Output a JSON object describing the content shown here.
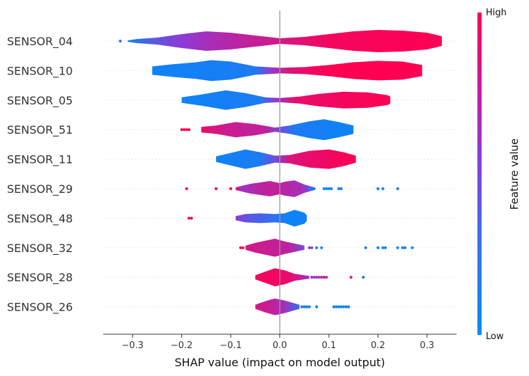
{
  "chart_data": {
    "type": "violin",
    "xlabel": "SHAP value (impact on model output)",
    "xlim": [
      -0.36,
      0.36
    ],
    "x_ticks": [
      -0.3,
      -0.2,
      -0.1,
      0.0,
      0.1,
      0.2,
      0.3
    ],
    "x_tick_labels": [
      "−0.3",
      "−0.2",
      "−0.1",
      "0.0",
      "0.1",
      "0.2",
      "0.3"
    ],
    "colorbar": {
      "title": "Feature value",
      "high_label": "High",
      "low_label": "Low",
      "low_color": "#008bfb",
      "high_color": "#ff0052"
    },
    "features": [
      {
        "name": "SENSOR_04",
        "profile": [
          [
            -0.31,
            1
          ],
          [
            -0.29,
            3
          ],
          [
            -0.25,
            5
          ],
          [
            -0.2,
            10
          ],
          [
            -0.15,
            14
          ],
          [
            -0.1,
            12
          ],
          [
            -0.05,
            8
          ],
          [
            0,
            4
          ],
          [
            0.05,
            6
          ],
          [
            0.1,
            10
          ],
          [
            0.15,
            14
          ],
          [
            0.2,
            16
          ],
          [
            0.25,
            15
          ],
          [
            0.3,
            12
          ],
          [
            0.33,
            7
          ]
        ],
        "color_stops": [
          [
            -0.31,
            0.05
          ],
          [
            -0.25,
            0.35
          ],
          [
            -0.2,
            0.5
          ],
          [
            -0.15,
            0.6
          ],
          [
            -0.1,
            0.68
          ],
          [
            0,
            0.8
          ],
          [
            0.1,
            0.95
          ],
          [
            0.33,
            1
          ]
        ],
        "outliers": [
          [
            -0.325,
            0.0
          ]
        ]
      },
      {
        "name": "SENSOR_10",
        "profile": [
          [
            -0.26,
            6
          ],
          [
            -0.22,
            9
          ],
          [
            -0.17,
            12
          ],
          [
            -0.14,
            15
          ],
          [
            -0.1,
            13
          ],
          [
            -0.05,
            6
          ],
          [
            0,
            4
          ],
          [
            0.05,
            5
          ],
          [
            0.1,
            8
          ],
          [
            0.15,
            12
          ],
          [
            0.2,
            14
          ],
          [
            0.25,
            13
          ],
          [
            0.29,
            8
          ]
        ],
        "color_stops": [
          [
            -0.26,
            0.05
          ],
          [
            -0.05,
            0.1
          ],
          [
            -0.02,
            0.5
          ],
          [
            0.02,
            0.85
          ],
          [
            0.1,
            1
          ],
          [
            0.29,
            1
          ]
        ],
        "outliers": []
      },
      {
        "name": "SENSOR_05",
        "profile": [
          [
            -0.2,
            4
          ],
          [
            -0.16,
            8
          ],
          [
            -0.11,
            14
          ],
          [
            -0.07,
            10
          ],
          [
            -0.03,
            4
          ],
          [
            0,
            3
          ],
          [
            0.04,
            5
          ],
          [
            0.08,
            9
          ],
          [
            0.13,
            12
          ],
          [
            0.18,
            11
          ],
          [
            0.22,
            7
          ],
          [
            0.225,
            5
          ]
        ],
        "color_stops": [
          [
            -0.2,
            0.05
          ],
          [
            -0.04,
            0.1
          ],
          [
            -0.01,
            0.5
          ],
          [
            0.03,
            0.9
          ],
          [
            0.225,
            1
          ]
        ],
        "outliers": []
      },
      {
        "name": "SENSOR_51",
        "profile": [
          [
            -0.16,
            4
          ],
          [
            -0.13,
            6
          ],
          [
            -0.09,
            11
          ],
          [
            -0.05,
            8
          ],
          [
            -0.01,
            3
          ],
          [
            0.02,
            6
          ],
          [
            0.06,
            12
          ],
          [
            0.09,
            15
          ],
          [
            0.12,
            11
          ],
          [
            0.15,
            6
          ]
        ],
        "color_stops": [
          [
            -0.16,
            0.9
          ],
          [
            -0.1,
            0.75
          ],
          [
            -0.03,
            0.72
          ],
          [
            0,
            0.4
          ],
          [
            0.03,
            0.1
          ],
          [
            0.15,
            0.05
          ]
        ],
        "outliers": [
          [
            -0.2,
            1
          ],
          [
            -0.195,
            1
          ],
          [
            -0.19,
            1
          ],
          [
            -0.185,
            1
          ]
        ]
      },
      {
        "name": "SENSOR_11",
        "profile": [
          [
            -0.13,
            4
          ],
          [
            -0.1,
            9
          ],
          [
            -0.07,
            14
          ],
          [
            -0.04,
            10
          ],
          [
            -0.01,
            5
          ],
          [
            0.02,
            6
          ],
          [
            0.06,
            12
          ],
          [
            0.1,
            14
          ],
          [
            0.13,
            10
          ],
          [
            0.155,
            5
          ]
        ],
        "color_stops": [
          [
            -0.13,
            0.05
          ],
          [
            -0.04,
            0.1
          ],
          [
            -0.01,
            0.4
          ],
          [
            0.02,
            0.85
          ],
          [
            0.155,
            1
          ]
        ],
        "outliers": []
      },
      {
        "name": "SENSOR_29",
        "profile": [
          [
            -0.09,
            2
          ],
          [
            -0.06,
            7
          ],
          [
            -0.02,
            11
          ],
          [
            0.0,
            8
          ],
          [
            0.01,
            10
          ],
          [
            0.03,
            12
          ],
          [
            0.05,
            6
          ],
          [
            0.07,
            2
          ]
        ],
        "color_stops": [
          [
            -0.09,
            0.55
          ],
          [
            -0.03,
            0.72
          ],
          [
            0.0,
            0.72
          ],
          [
            0.04,
            0.6
          ],
          [
            0.07,
            0.4
          ]
        ],
        "outliers": [
          [
            -0.19,
            1
          ],
          [
            -0.13,
            1
          ],
          [
            -0.1,
            1
          ],
          [
            -0.085,
            1
          ],
          [
            0.04,
            0.8
          ],
          [
            0.06,
            0.05
          ],
          [
            0.065,
            0.05
          ],
          [
            0.07,
            0.1
          ],
          [
            0.09,
            0.05
          ],
          [
            0.095,
            0.05
          ],
          [
            0.1,
            0.05
          ],
          [
            0.105,
            0.05
          ],
          [
            0.12,
            0.05
          ],
          [
            0.125,
            0.05
          ],
          [
            0.2,
            0.05
          ],
          [
            0.21,
            0.05
          ],
          [
            0.24,
            0.05
          ]
        ]
      },
      {
        "name": "SENSOR_48",
        "profile": [
          [
            -0.09,
            3
          ],
          [
            -0.07,
            6
          ],
          [
            -0.04,
            7
          ],
          [
            -0.01,
            6
          ],
          [
            0.01,
            7
          ],
          [
            0.03,
            12
          ],
          [
            0.05,
            8
          ],
          [
            0.055,
            4
          ]
        ],
        "color_stops": [
          [
            -0.09,
            0.5
          ],
          [
            -0.06,
            0.3
          ],
          [
            -0.02,
            0.2
          ],
          [
            0.02,
            0.05
          ],
          [
            0.055,
            0.05
          ]
        ],
        "outliers": [
          [
            -0.185,
            1
          ],
          [
            -0.18,
            1
          ]
        ]
      },
      {
        "name": "SENSOR_32",
        "profile": [
          [
            -0.07,
            3
          ],
          [
            -0.05,
            7
          ],
          [
            -0.03,
            10
          ],
          [
            -0.01,
            13
          ],
          [
            0.01,
            9
          ],
          [
            0.03,
            6
          ],
          [
            0.05,
            3
          ]
        ],
        "color_stops": [
          [
            -0.07,
            0.8
          ],
          [
            -0.02,
            0.75
          ],
          [
            0.02,
            0.7
          ],
          [
            0.05,
            0.4
          ]
        ],
        "outliers": [
          [
            -0.08,
            1
          ],
          [
            -0.075,
            1
          ],
          [
            0.06,
            0.5
          ],
          [
            0.065,
            0.5
          ],
          [
            0.075,
            0.1
          ],
          [
            0.085,
            0.05
          ],
          [
            0.175,
            0.05
          ],
          [
            0.2,
            0.05
          ],
          [
            0.21,
            0.05
          ],
          [
            0.215,
            0.05
          ],
          [
            0.24,
            0.05
          ],
          [
            0.25,
            0.05
          ],
          [
            0.255,
            0.05
          ],
          [
            0.27,
            0.05
          ]
        ]
      },
      {
        "name": "SENSOR_28",
        "profile": [
          [
            -0.05,
            3
          ],
          [
            -0.03,
            8
          ],
          [
            -0.01,
            13
          ],
          [
            0.01,
            10
          ],
          [
            0.03,
            5
          ],
          [
            0.05,
            3
          ],
          [
            0.06,
            2
          ]
        ],
        "color_stops": [
          [
            -0.05,
            0.95
          ],
          [
            -0.01,
            0.95
          ],
          [
            0.02,
            0.9
          ],
          [
            0.04,
            0.75
          ],
          [
            0.06,
            0.55
          ]
        ],
        "outliers": [
          [
            0.065,
            0.6
          ],
          [
            0.07,
            0.5
          ],
          [
            0.075,
            0.55
          ],
          [
            0.08,
            0.6
          ],
          [
            0.085,
            0.7
          ],
          [
            0.09,
            0.8
          ],
          [
            0.095,
            0.6
          ],
          [
            0.145,
            0.8
          ],
          [
            0.17,
            0.1
          ]
        ]
      },
      {
        "name": "SENSOR_26",
        "profile": [
          [
            -0.05,
            3
          ],
          [
            -0.03,
            8
          ],
          [
            -0.01,
            12
          ],
          [
            0.01,
            9
          ],
          [
            0.03,
            5
          ],
          [
            0.04,
            3
          ]
        ],
        "color_stops": [
          [
            -0.05,
            0.8
          ],
          [
            -0.02,
            0.75
          ],
          [
            0.01,
            0.6
          ],
          [
            0.03,
            0.3
          ],
          [
            0.04,
            0.15
          ]
        ],
        "outliers": [
          [
            0.045,
            0.1
          ],
          [
            0.05,
            0.05
          ],
          [
            0.055,
            0.05
          ],
          [
            0.06,
            0.1
          ],
          [
            0.075,
            0.05
          ],
          [
            0.11,
            0.05
          ],
          [
            0.115,
            0.05
          ],
          [
            0.12,
            0.05
          ],
          [
            0.125,
            0.05
          ],
          [
            0.13,
            0.05
          ],
          [
            0.135,
            0.05
          ],
          [
            0.14,
            0.05
          ]
        ]
      }
    ]
  }
}
